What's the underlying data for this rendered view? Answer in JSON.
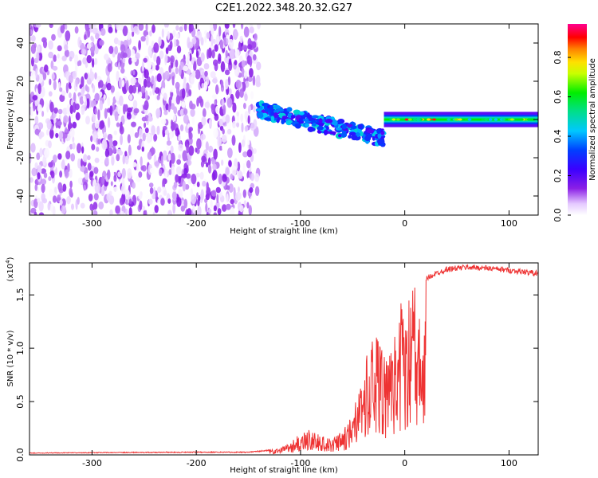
{
  "chart_data": [
    {
      "type": "heatmap",
      "title": "C2E1.2022.348.20.32.G27",
      "xlabel": "Height of straight line (km)",
      "ylabel": "Frequency (Hz)",
      "xlim": [
        -360,
        128
      ],
      "ylim": [
        -50,
        50
      ],
      "x_ticks": [
        -300,
        -200,
        -100,
        0,
        100
      ],
      "y_ticks": [
        -40,
        -20,
        0,
        20,
        40
      ],
      "colorbar": {
        "label": "Normalized spectral amplitude",
        "range": [
          0,
          0.97
        ],
        "ticks": [
          "0.0",
          "0.2",
          "0.4",
          "0.6",
          "0.8"
        ],
        "colormap": "rainbow-white (white, purple, blue, cyan, green, yellow, orange, red, magenta)"
      },
      "regions": [
        {
          "description": "noise",
          "x_range": [
            -360,
            -140
          ],
          "freq_range": [
            -50,
            50
          ],
          "amplitude": [
            0.0,
            0.15
          ]
        },
        {
          "description": "signal",
          "x_range": [
            -140,
            -20
          ],
          "freq_center_start": 5,
          "freq_center_end": -10,
          "amplitude": [
            0.2,
            0.5
          ]
        },
        {
          "description": "signal",
          "x_range": [
            -20,
            128
          ],
          "freq_center": 0,
          "amplitude": [
            0.4,
            0.97
          ]
        }
      ]
    },
    {
      "type": "line",
      "xlabel": "Height of straight line (km)",
      "ylabel": "SNR (10 * v/v)",
      "y_multiplier_label": "(x10",
      "y_multiplier_exponent": "4",
      "y_multiplier_close": ")",
      "xlim": [
        -360,
        128
      ],
      "ylim": [
        0,
        18000
      ],
      "x_ticks": [
        -300,
        -200,
        -100,
        0,
        100
      ],
      "y_ticks": [
        "0.0",
        "0.5",
        "1.0",
        "1.5"
      ],
      "y_tick_values": [
        0,
        5000,
        10000,
        15000
      ],
      "series": [
        {
          "color": "#ee3333",
          "x": [
            -360,
            -300,
            -200,
            -150,
            -120,
            -110,
            -100,
            -90,
            -80,
            -70,
            -60,
            -50,
            -45,
            -40,
            -35,
            -30,
            -25,
            -20,
            -15,
            -10,
            -5,
            0,
            10,
            20,
            30,
            40,
            60,
            80,
            100,
            120,
            128
          ],
          "y": [
            200,
            250,
            300,
            300,
            600,
            1200,
            2000,
            2500,
            1800,
            1500,
            2200,
            4000,
            6000,
            8000,
            10000,
            12000,
            13000,
            11000,
            9000,
            12000,
            14000,
            15000,
            15800,
            16500,
            17000,
            17400,
            17600,
            17500,
            17300,
            17100,
            17000
          ]
        }
      ]
    }
  ]
}
